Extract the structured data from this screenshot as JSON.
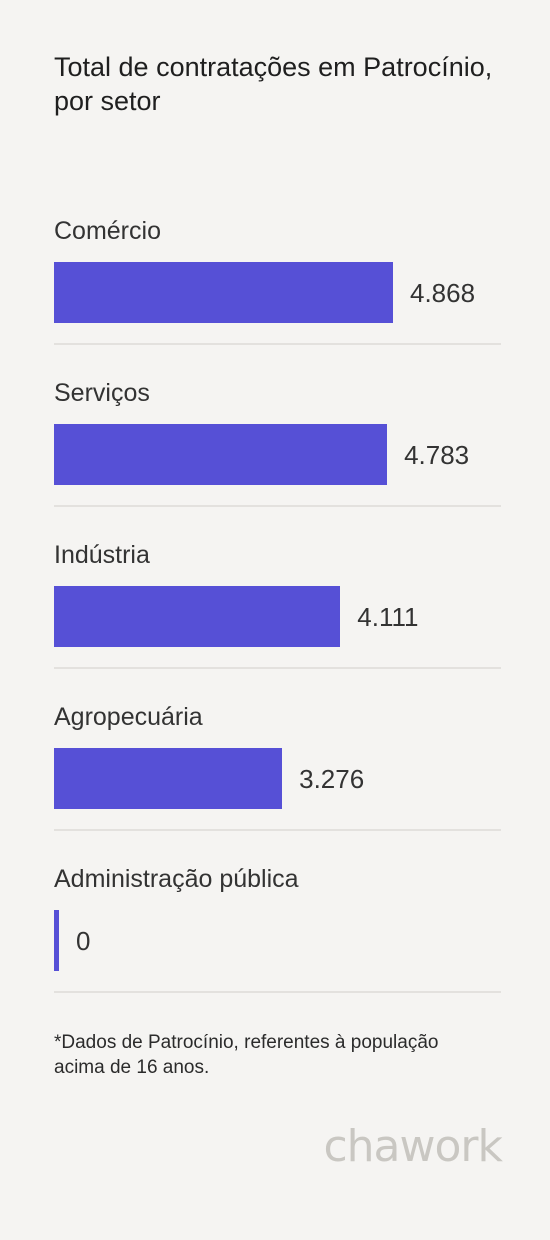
{
  "header": {
    "title": "Total de contratações em Patrocínio, por setor"
  },
  "chart_data": {
    "type": "bar",
    "orientation": "horizontal",
    "title": "Total de contratações em Patrocínio, por setor",
    "categories": [
      "Comércio",
      "Serviços",
      "Indústria",
      "Agropecuária",
      "Administração pública"
    ],
    "values": [
      4868,
      4783,
      4111,
      3276,
      0
    ],
    "value_labels": [
      "4.868",
      "4.783",
      "4.111",
      "3.276",
      "0"
    ],
    "bar_color": "#5650d6",
    "xlabel": "",
    "ylabel": ""
  },
  "footnote": "*Dados de Patrocínio, referentes à população acima de 16 anos.",
  "brand": {
    "logo_text": "chawork"
  },
  "colors": {
    "background": "#f5f4f2",
    "bar": "#5650d6",
    "divider": "#e3e1de",
    "logo": "#c9c7c2"
  }
}
